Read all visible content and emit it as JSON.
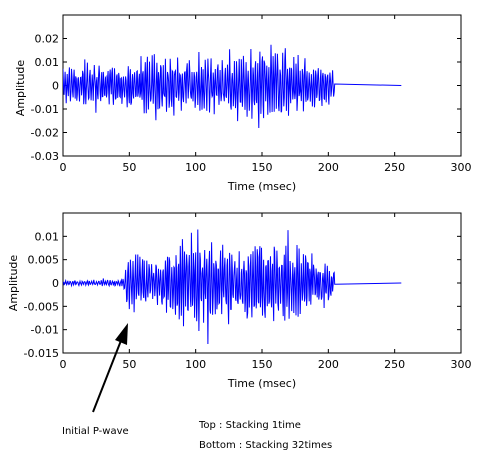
{
  "chart_data": [
    {
      "type": "line",
      "title": "",
      "xlabel": "Time (msec)",
      "ylabel": "Amplitude",
      "xlim": [
        0,
        300
      ],
      "ylim": [
        -0.03,
        0.03
      ],
      "xticks": [
        0,
        50,
        100,
        150,
        200,
        250,
        300
      ],
      "yticks": [
        -0.03,
        -0.02,
        -0.01,
        0,
        0.01,
        0.02
      ],
      "ytick_labels": [
        "-0.03",
        "-0.02",
        "-0.01",
        "0",
        "0.01",
        "0.02"
      ],
      "grid": false,
      "color": "#0000ff",
      "series": [
        {
          "signal_end_ms": 205,
          "trace_end_ms": 255,
          "envelope": [
            {
              "t": 0,
              "amp": 0.011
            },
            {
              "t": 40,
              "amp": 0.013
            },
            {
              "t": 60,
              "amp": 0.017
            },
            {
              "t": 100,
              "amp": 0.016
            },
            {
              "t": 160,
              "amp": 0.025
            },
            {
              "t": 204,
              "amp": 0.011
            },
            {
              "t": 205,
              "amp": 0
            }
          ]
        }
      ]
    },
    {
      "type": "line",
      "title": "",
      "xlabel": "Time (msec)",
      "ylabel": "Amplitude",
      "xlim": [
        0,
        300
      ],
      "ylim": [
        -0.015,
        0.015
      ],
      "xticks": [
        0,
        50,
        100,
        150,
        200,
        250,
        300
      ],
      "yticks": [
        -0.015,
        -0.01,
        -0.005,
        0,
        0.005,
        0.01
      ],
      "ytick_labels": [
        "-0.015",
        "-0.01",
        "-0.005",
        "0",
        "0.005",
        "0.01"
      ],
      "grid": false,
      "color": "#0000ff",
      "series": [
        {
          "signal_end_ms": 205,
          "trace_end_ms": 255,
          "envelope": [
            {
              "t": 0,
              "amp": 0.0007
            },
            {
              "t": 45,
              "amp": 0.0012
            },
            {
              "t": 50,
              "amp": 0.009
            },
            {
              "t": 70,
              "amp": 0.007
            },
            {
              "t": 95,
              "amp": 0.015
            },
            {
              "t": 105,
              "amp": 0.014
            },
            {
              "t": 130,
              "amp": 0.011
            },
            {
              "t": 160,
              "amp": 0.014
            },
            {
              "t": 204,
              "amp": 0.006
            },
            {
              "t": 205,
              "amp": 0
            }
          ]
        }
      ],
      "annotations": [
        {
          "text": "Initial P-wave",
          "points_to_ms": 50
        }
      ]
    }
  ],
  "notes": {
    "top_line": "Top : Stacking  1time",
    "bottom_line": "Bottom : Stacking  32times"
  }
}
